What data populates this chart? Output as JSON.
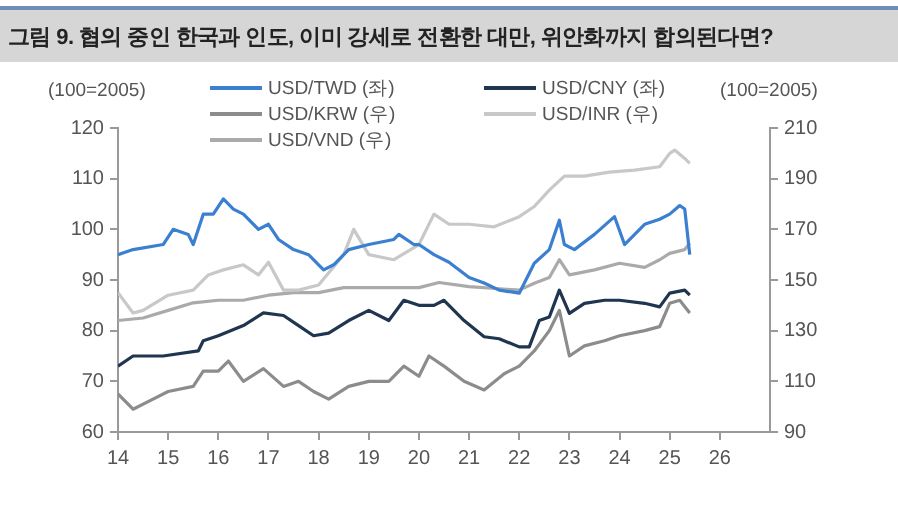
{
  "chart_data": {
    "type": "line",
    "title": "그림 9. 협의 중인 한국과 인도, 이미 강세로 전환한 대만, 위안화까지 합의된다면?",
    "ylabel": "(100=2005)",
    "y2label": "(100=2005)",
    "legend": "top",
    "marker": "none",
    "grid": false,
    "xlim": [
      14,
      27
    ],
    "xticks": [
      14,
      15,
      16,
      17,
      18,
      19,
      20,
      21,
      22,
      23,
      24,
      25,
      26
    ],
    "ylim": [
      60,
      120
    ],
    "yticks": [
      60,
      70,
      80,
      90,
      100,
      110,
      120
    ],
    "y2lim": [
      90,
      210
    ],
    "y2ticks": [
      90,
      110,
      130,
      150,
      170,
      190,
      210
    ],
    "series": [
      {
        "name": "USD/TWD (좌)",
        "color": "#3a7fd0",
        "x": [
          14,
          14.3,
          14.9,
          15.1,
          15.4,
          15.5,
          15.7,
          15.9,
          16.1,
          16.3,
          16.5,
          16.8,
          17,
          17.2,
          17.5,
          17.8,
          18,
          18.1,
          18.3,
          18.6,
          19,
          19.5,
          19.6,
          19.9,
          20,
          20.3,
          20.6,
          21,
          21.3,
          21.6,
          22,
          22.3,
          22.6,
          22.8,
          22.9,
          23.1,
          23.5,
          23.9,
          24.1,
          24.5,
          24.8,
          25,
          25.2,
          25.3,
          25.4
        ],
        "values": [
          95,
          96,
          97,
          100,
          99,
          97,
          103,
          103,
          106,
          104,
          103,
          100,
          101,
          98,
          96,
          95,
          93,
          92,
          93,
          96,
          97,
          98,
          99,
          97,
          97,
          95,
          93.5,
          90.5,
          89.4,
          88,
          87.4,
          93.3,
          96,
          101.8,
          97,
          96,
          99,
          102.5,
          97,
          101,
          102,
          103,
          104.7,
          104,
          95
        ]
      },
      {
        "name": "USD/CNY (좌)",
        "color": "#1f3550",
        "x": [
          14,
          14.3,
          14.9,
          15.6,
          15.7,
          16,
          16.5,
          16.9,
          17.3,
          17.6,
          17.9,
          18.2,
          18.6,
          19,
          19.4,
          19.7,
          20,
          20.3,
          20.5,
          20.9,
          21.3,
          21.6,
          22,
          22.2,
          22.4,
          22.6,
          22.8,
          23,
          23.3,
          23.7,
          24,
          24.5,
          24.8,
          25,
          25.3,
          25.4
        ],
        "values": [
          73,
          75,
          75,
          76,
          78,
          79,
          81,
          83.5,
          83,
          81,
          79,
          79.5,
          82,
          84,
          82,
          86,
          85,
          85,
          86,
          82,
          78.8,
          78.4,
          76.8,
          76.8,
          82,
          82.7,
          88,
          83.4,
          85.4,
          86,
          86,
          85.4,
          84.7,
          87.4,
          88,
          87
        ]
      },
      {
        "name": "USD/KRW (우)",
        "color": "#8c8c8c",
        "axis": "y2",
        "x": [
          14,
          14.3,
          14.6,
          15,
          15.5,
          15.7,
          16,
          16.2,
          16.5,
          16.9,
          17.3,
          17.6,
          17.9,
          18.2,
          18.6,
          19,
          19.4,
          19.7,
          20,
          20.2,
          20.5,
          20.9,
          21.3,
          21.7,
          22,
          22.3,
          22.6,
          22.8,
          23,
          23.3,
          23.7,
          24,
          24.5,
          24.8,
          25,
          25.2,
          25.4
        ],
        "values": [
          105,
          99,
          102,
          106,
          108,
          114,
          114,
          118,
          110,
          115,
          108,
          110,
          106,
          103,
          108,
          110,
          110,
          116,
          112,
          120,
          116,
          110,
          106.6,
          113,
          116,
          122,
          130,
          138,
          120,
          124,
          126,
          128,
          130,
          131.6,
          140.8,
          142,
          137
        ]
      },
      {
        "name": "USD/INR (우)",
        "color": "#c8c8c8",
        "axis": "y2",
        "x": [
          14,
          14.3,
          14.5,
          15,
          15.5,
          15.8,
          16.1,
          16.5,
          16.8,
          17,
          17.3,
          17.6,
          18,
          18.5,
          18.7,
          19,
          19.5,
          20,
          20.3,
          20.6,
          21,
          21.5,
          22,
          22.3,
          22.6,
          22.9,
          23.3,
          23.8,
          24.3,
          24.8,
          25,
          25.1,
          25.3,
          25.4
        ],
        "values": [
          145,
          137,
          138,
          144,
          146,
          152,
          154,
          156,
          152,
          157,
          146,
          146,
          148,
          160,
          170,
          160,
          158,
          164,
          176,
          172,
          172,
          171,
          175,
          179,
          185.5,
          191,
          191,
          192.6,
          193.4,
          194.7,
          200,
          201.3,
          198,
          196
        ]
      },
      {
        "name": "USD/VND (우)",
        "color": "#aaaaaa",
        "axis": "y2",
        "x": [
          14,
          14.5,
          15,
          15.5,
          16,
          16.5,
          17,
          17.5,
          18,
          18.5,
          19,
          20,
          20.4,
          21,
          22,
          22.3,
          22.6,
          22.8,
          23,
          23.5,
          24,
          24.5,
          24.8,
          25,
          25.3,
          25.4
        ],
        "values": [
          134,
          135,
          138,
          141,
          142,
          142,
          144,
          145,
          145,
          147,
          147,
          147,
          149,
          147.4,
          146,
          148.7,
          151,
          158,
          152,
          154,
          156.6,
          155,
          158,
          160.5,
          162,
          164.5
        ]
      }
    ]
  }
}
